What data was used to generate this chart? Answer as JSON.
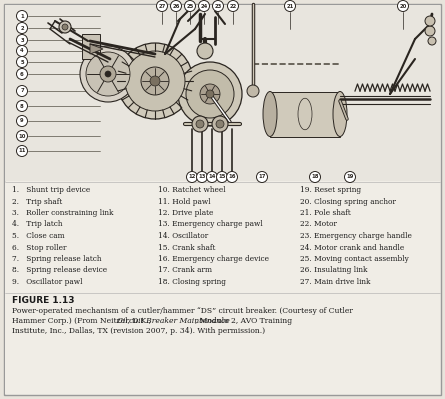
{
  "bg_color": "#e8e4dc",
  "page_bg": "#f0ede6",
  "white": "#ffffff",
  "border_color": "#999999",
  "text_color": "#1a1a1a",
  "diagram_bg": "#e8e5de",
  "line_color": "#2a2520",
  "figure_label": "FIGURE 1.13",
  "caption_lines": [
    [
      "Power-operated mechanism of a cutler/hammer “DS” circuit breaker. (Courtesy of Cutler",
      false
    ],
    [
      "Hammer Corp.) (From Neitzel, D.K., ",
      false
    ],
    [
      "Circuit Breaker Maintenance",
      true
    ],
    [
      ", Module 2, AVO Training",
      false
    ],
    [
      "Institute, Inc., Dallas, TX (revision 2007, p. 34). With permission.)",
      false
    ]
  ],
  "legend_col1": [
    "1.   Shunt trip device",
    "2.   Trip shaft",
    "3.   Roller constraining link",
    "4.   Trip latch",
    "5.   Close cam",
    "6.   Stop roller",
    "7.   Spring release latch",
    "8.   Spring release device",
    "9.   Oscillator pawl"
  ],
  "legend_col2": [
    "10. Ratchet wheel",
    "11. Hold pawl",
    "12. Drive plate",
    "13. Emergency charge pawl",
    "14. Oscillator",
    "15. Crank shaft",
    "16. Emergency charge device",
    "17. Crank arm",
    "18. Closing spring"
  ],
  "legend_col3": [
    "19. Reset spring",
    "20. Closing spring anchor",
    "21. Pole shaft",
    "22. Motor",
    "23. Emergency charge handle",
    "24. Motor crank and handle",
    "25. Moving contact assembly",
    "26. Insulating link",
    "27. Main drive link"
  ]
}
